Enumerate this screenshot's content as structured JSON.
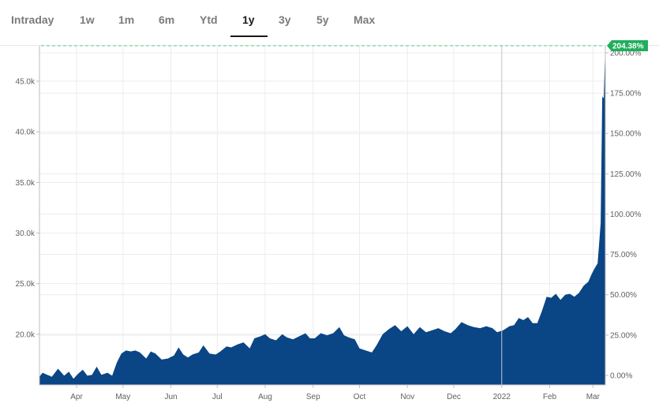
{
  "tabs": {
    "intraday": "Intraday",
    "w1": "1w",
    "m1": "1m",
    "m6": "6m",
    "ytd": "Ytd",
    "y1": "1y",
    "y3": "3y",
    "y5": "5y",
    "max": "Max"
  },
  "active_tab": "1y",
  "colors": {
    "area_fill": "#0a4585",
    "badge": "#1fae5a",
    "dashed_line": "#5fcf8f",
    "grid": "#ececec",
    "axis": "#bdbdbd",
    "year_marker": "#c8c8c8"
  },
  "chart_data": {
    "type": "area",
    "xlabel": "",
    "ylabel": "",
    "x_tick_labels": [
      "Apr",
      "May",
      "Jun",
      "Jul",
      "Aug",
      "Sep",
      "Oct",
      "Nov",
      "Dec",
      "2022",
      "Feb",
      "Mar"
    ],
    "x_tick_dates": [
      "2021-04-01",
      "2021-05-01",
      "2021-06-01",
      "2021-07-01",
      "2021-08-01",
      "2021-09-01",
      "2021-10-01",
      "2021-11-01",
      "2021-12-01",
      "2022-01-01",
      "2022-02-01",
      "2022-03-01"
    ],
    "x_range": [
      "2021-03-08",
      "2022-03-09"
    ],
    "left_axis": {
      "ticks": [
        20000,
        25000,
        30000,
        35000,
        40000,
        45000
      ],
      "tick_labels": [
        "20.0k",
        "25.0k",
        "30.0k",
        "35.0k",
        "40.0k",
        "45.0k"
      ],
      "ylim": [
        15000,
        48500
      ]
    },
    "right_axis": {
      "ticks": [
        0,
        25,
        50,
        75,
        100,
        125,
        150,
        175,
        200
      ],
      "tick_labels": [
        "0.00%",
        "25.00%",
        "50.00%",
        "75.00%",
        "100.00%",
        "125.00%",
        "150.00%",
        "175.00%",
        "200.00%"
      ]
    },
    "current_change_label": "204.38%",
    "grid": true,
    "series": [
      {
        "x": [
          "2021-03-08",
          "2021-03-10",
          "2021-03-13",
          "2021-03-16",
          "2021-03-20",
          "2021-03-24",
          "2021-03-27",
          "2021-03-30",
          "2021-04-02",
          "2021-04-05",
          "2021-04-08",
          "2021-04-11",
          "2021-04-14",
          "2021-04-17",
          "2021-04-21",
          "2021-04-24",
          "2021-04-27",
          "2021-04-30",
          "2021-05-03",
          "2021-05-06",
          "2021-05-09",
          "2021-05-12",
          "2021-05-16",
          "2021-05-19",
          "2021-05-22",
          "2021-05-26",
          "2021-05-30",
          "2021-06-03",
          "2021-06-06",
          "2021-06-09",
          "2021-06-12",
          "2021-06-15",
          "2021-06-19",
          "2021-06-22",
          "2021-06-26",
          "2021-06-30",
          "2021-07-03",
          "2021-07-07",
          "2021-07-10",
          "2021-07-14",
          "2021-07-18",
          "2021-07-22",
          "2021-07-25",
          "2021-07-29",
          "2021-08-01",
          "2021-08-04",
          "2021-08-08",
          "2021-08-12",
          "2021-08-15",
          "2021-08-19",
          "2021-08-23",
          "2021-08-27",
          "2021-08-30",
          "2021-09-02",
          "2021-09-06",
          "2021-09-10",
          "2021-09-14",
          "2021-09-18",
          "2021-09-21",
          "2021-09-24",
          "2021-09-28",
          "2021-10-01",
          "2021-10-05",
          "2021-10-09",
          "2021-10-12",
          "2021-10-16",
          "2021-10-20",
          "2021-10-24",
          "2021-10-28",
          "2021-11-01",
          "2021-11-05",
          "2021-11-09",
          "2021-11-13",
          "2021-11-17",
          "2021-11-21",
          "2021-11-25",
          "2021-11-29",
          "2021-12-02",
          "2021-12-06",
          "2021-12-10",
          "2021-12-14",
          "2021-12-18",
          "2021-12-22",
          "2021-12-26",
          "2021-12-29",
          "2022-01-02",
          "2022-01-06",
          "2022-01-09",
          "2022-01-12",
          "2022-01-15",
          "2022-01-18",
          "2022-01-21",
          "2022-01-24",
          "2022-01-27",
          "2022-01-30",
          "2022-02-02",
          "2022-02-05",
          "2022-02-08",
          "2022-02-11",
          "2022-02-14",
          "2022-02-17",
          "2022-02-20",
          "2022-02-23",
          "2022-02-26",
          "2022-02-28",
          "2022-03-02",
          "2022-03-04",
          "2022-03-05",
          "2022-03-06",
          "2022-03-07",
          "2022-03-08",
          "2022-03-09"
        ],
        "values": [
          15800,
          16200,
          16000,
          15800,
          16600,
          15900,
          16300,
          15600,
          16100,
          16500,
          15900,
          16000,
          16800,
          16000,
          16200,
          15900,
          17200,
          18100,
          18400,
          18300,
          18400,
          18200,
          17600,
          18300,
          18100,
          17500,
          17600,
          17900,
          18700,
          18000,
          17700,
          18000,
          18200,
          18900,
          18100,
          18000,
          18300,
          18800,
          18700,
          19000,
          19200,
          18600,
          19600,
          19800,
          20000,
          19600,
          19400,
          20000,
          19700,
          19500,
          19800,
          20100,
          19600,
          19600,
          20100,
          19900,
          20100,
          20700,
          19900,
          19700,
          19500,
          18600,
          18400,
          18200,
          18900,
          20000,
          20500,
          20900,
          20300,
          20800,
          20000,
          20700,
          20200,
          20400,
          20600,
          20300,
          20100,
          20500,
          21200,
          20900,
          20700,
          20600,
          20800,
          20600,
          20200,
          20400,
          20800,
          20900,
          21600,
          21400,
          21700,
          21100,
          21100,
          22300,
          23700,
          23600,
          24000,
          23400,
          23900,
          24000,
          23700,
          24100,
          24800,
          25200,
          25900,
          26500,
          27000,
          29000,
          31000,
          43500,
          43300,
          48500
        ]
      }
    ]
  }
}
